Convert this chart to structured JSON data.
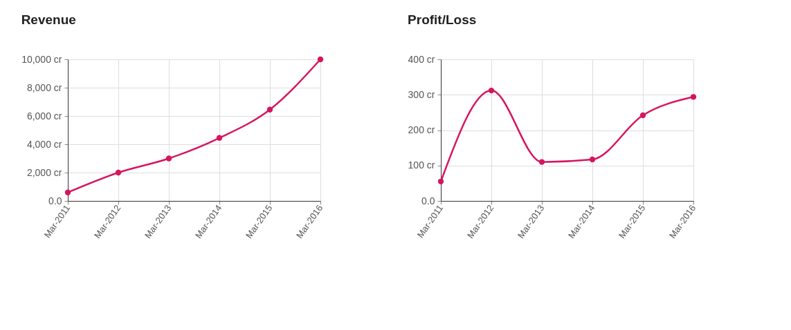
{
  "chart_data": [
    {
      "type": "line",
      "title": "Revenue",
      "categories": [
        "Mar-2011",
        "Mar-2012",
        "Mar-2013",
        "Mar-2014",
        "Mar-2015",
        "Mar-2016"
      ],
      "series": [
        {
          "color": "#d6145f",
          "values": [
            600,
            2000,
            3000,
            4450,
            6450,
            10000
          ]
        }
      ],
      "ylim": [
        0,
        10000
      ],
      "yticks": [
        {
          "value": 0,
          "label": "0.0"
        },
        {
          "value": 2000,
          "label": "2,000 cr"
        },
        {
          "value": 4000,
          "label": "4,000 cr"
        },
        {
          "value": 6000,
          "label": "6,000 cr"
        },
        {
          "value": 8000,
          "label": "8,000 cr"
        },
        {
          "value": 10000,
          "label": "10,000 cr"
        }
      ],
      "grid": true,
      "marker": "circle"
    },
    {
      "type": "line",
      "title": "Profit/Loss",
      "categories": [
        "Mar-2011",
        "Mar-2012",
        "Mar-2013",
        "Mar-2014",
        "Mar-2015",
        "Mar-2016"
      ],
      "series": [
        {
          "color": "#d6145f",
          "values": [
            55,
            312,
            110,
            117,
            242,
            294
          ]
        }
      ],
      "ylim": [
        0,
        400
      ],
      "yticks": [
        {
          "value": 0,
          "label": "0.0"
        },
        {
          "value": 100,
          "label": "100 cr"
        },
        {
          "value": 200,
          "label": "200 cr"
        },
        {
          "value": 300,
          "label": "300 cr"
        },
        {
          "value": 400,
          "label": "400 cr"
        }
      ],
      "grid": true,
      "marker": "circle"
    }
  ]
}
